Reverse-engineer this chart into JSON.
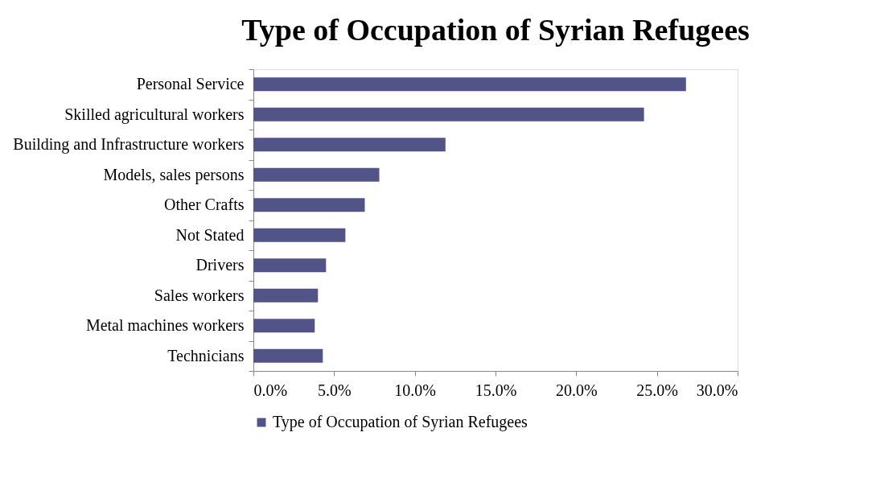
{
  "chart_data": {
    "type": "bar",
    "orientation": "horizontal",
    "title": "Type of Occupation of Syrian Refugees",
    "categories": [
      "Personal Service",
      "Skilled agricultural workers",
      "Building and Infrastructure workers",
      "Models, sales persons",
      "Other Crafts",
      "Not Stated",
      "Drivers",
      "Sales workers",
      "Metal machines workers",
      "Technicians"
    ],
    "series": [
      {
        "name": "Type of Occupation of Syrian Refugees",
        "color": "#525488",
        "values": [
          26.8,
          24.2,
          11.9,
          7.8,
          6.9,
          5.7,
          4.5,
          4.0,
          3.8,
          4.3
        ]
      }
    ],
    "xlim": [
      0,
      30
    ],
    "xticks": [
      {
        "value": 0,
        "label": "0.0%"
      },
      {
        "value": 5,
        "label": "5.0%"
      },
      {
        "value": 10,
        "label": "10.0%"
      },
      {
        "value": 15,
        "label": "15.0%"
      },
      {
        "value": 20,
        "label": "20.0%"
      },
      {
        "value": 25,
        "label": "25.0%"
      },
      {
        "value": 30,
        "label": "30.0%"
      }
    ],
    "grid": false,
    "legend": "bottom"
  }
}
